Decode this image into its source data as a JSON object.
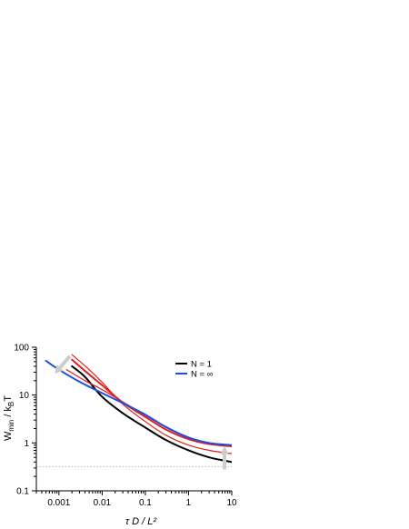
{
  "chart_data": {
    "type": "line",
    "xlabel": "τ D / L²",
    "ylabel": "W_min / k_B T",
    "x_scale": "log",
    "y_scale": "log",
    "xlim": [
      0.0003,
      10
    ],
    "ylim": [
      0.1,
      100
    ],
    "x_ticks": [
      {
        "value": 0.001,
        "label": "0.001"
      },
      {
        "value": 0.01,
        "label": "0.01"
      },
      {
        "value": 0.1,
        "label": "0.1"
      },
      {
        "value": 1,
        "label": "1"
      },
      {
        "value": 10,
        "label": "10"
      }
    ],
    "y_ticks": [
      {
        "value": 0.1,
        "label": "0.1"
      },
      {
        "value": 1,
        "label": "1"
      },
      {
        "value": 10,
        "label": "10"
      },
      {
        "value": 100,
        "label": "100"
      }
    ],
    "grid": false,
    "legend_position": "top-right",
    "legend": [
      {
        "label": "N = 1",
        "color": "#000000"
      },
      {
        "label": "N = ∞",
        "color": "#1f4fd8"
      }
    ],
    "reference_line": {
      "y": 0.32,
      "style": "dotted",
      "color": "#bbbbbb"
    },
    "series": [
      {
        "name": "N = 1",
        "color": "#000000",
        "width": 2,
        "points": [
          [
            0.002,
            40
          ],
          [
            0.004,
            24
          ],
          [
            0.01,
            9.2
          ],
          [
            0.03,
            4.2
          ],
          [
            0.1,
            2.1
          ],
          [
            0.3,
            1.15
          ],
          [
            1,
            0.7
          ],
          [
            3,
            0.5
          ],
          [
            10,
            0.4
          ]
        ]
      },
      {
        "color": "#e02020",
        "width": 2,
        "points": [
          [
            0.002,
            55
          ],
          [
            0.004,
            32
          ],
          [
            0.01,
            16
          ],
          [
            0.03,
            7.0
          ],
          [
            0.1,
            3.5
          ],
          [
            0.3,
            1.9
          ],
          [
            1,
            1.2
          ],
          [
            3,
            0.95
          ],
          [
            10,
            0.85
          ]
        ]
      },
      {
        "color": "#e02020",
        "width": 1.2,
        "points": [
          [
            0.002,
            70
          ],
          [
            0.005,
            34
          ],
          [
            0.01,
            18.5
          ],
          [
            0.03,
            6.5
          ],
          [
            0.1,
            2.8
          ],
          [
            0.3,
            1.45
          ],
          [
            1,
            0.9
          ],
          [
            3,
            0.7
          ],
          [
            10,
            0.6
          ]
        ]
      },
      {
        "color": "#e02020",
        "width": 1.2,
        "points": [
          [
            0.0015,
            34
          ],
          [
            0.004,
            20
          ],
          [
            0.01,
            13
          ],
          [
            0.03,
            7.2
          ],
          [
            0.1,
            3.8
          ],
          [
            0.3,
            2.1
          ],
          [
            1,
            1.3
          ],
          [
            3,
            1.0
          ],
          [
            10,
            0.9
          ]
        ]
      },
      {
        "name": "N = ∞",
        "color": "#1f4fd8",
        "width": 2,
        "points": [
          [
            0.0005,
            52
          ],
          [
            0.001,
            34
          ],
          [
            0.003,
            19
          ],
          [
            0.01,
            11
          ],
          [
            0.03,
            6.8
          ],
          [
            0.1,
            3.9
          ],
          [
            0.3,
            2.15
          ],
          [
            1,
            1.3
          ],
          [
            3,
            1.0
          ],
          [
            10,
            0.9
          ]
        ]
      }
    ],
    "arrows": [
      {
        "name": "left",
        "color": "#cccccc",
        "from": [
          0.0018,
          65
        ],
        "to": [
          0.0008,
          28
        ]
      },
      {
        "name": "right",
        "color": "#cccccc",
        "from": [
          6.8,
          0.28
        ],
        "to": [
          6.8,
          0.85
        ]
      }
    ]
  }
}
